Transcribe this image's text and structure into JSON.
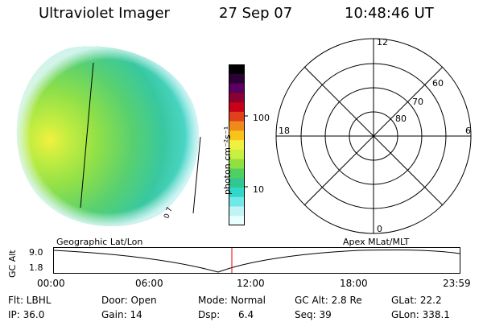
{
  "header": {
    "title": "Ultraviolet Imager",
    "date": "27 Sep 07",
    "time": "10:48:46 UT"
  },
  "colorbar": {
    "unit_label": "photon cm⁻²s⁻¹",
    "ticks": [
      "100",
      "10"
    ],
    "colors": [
      "#000000",
      "#2a0035",
      "#5a0060",
      "#8a0030",
      "#c80018",
      "#e0401a",
      "#f08a1a",
      "#f8c41a",
      "#f0f040",
      "#c8f040",
      "#90e040",
      "#50d060",
      "#30c890",
      "#30d8c8",
      "#70e8e8",
      "#c0f4f4",
      "#e8ffff"
    ]
  },
  "image_panel": {
    "mlt_label": "0\n7"
  },
  "polar_grid": {
    "mlt_labels": {
      "top": "12",
      "left": "18",
      "right": "6",
      "bottom": "0"
    },
    "lat_labels": [
      "60",
      "70",
      "80"
    ]
  },
  "timeline": {
    "left_label": "Geographic Lat/Lon",
    "right_label": "Apex  MLat/MLT",
    "axis_label": "GC Alt",
    "y_ticks": [
      "9.0",
      "1.8"
    ],
    "x_ticks": [
      "00:00",
      "06:00",
      "12:00",
      "18:00",
      "23:59"
    ]
  },
  "info": {
    "flt": "Flt: LBHL",
    "door": "Door: Open",
    "mode": "Mode: Normal",
    "gc_alt": "GC Alt: 2.8 Re",
    "glat": "GLat:  22.2",
    "ip": "IP: 36.0",
    "gain": "Gain: 14",
    "dsp": "Dsp:      6.4",
    "seq": "Seq: 39",
    "glon": "GLon: 338.1"
  }
}
